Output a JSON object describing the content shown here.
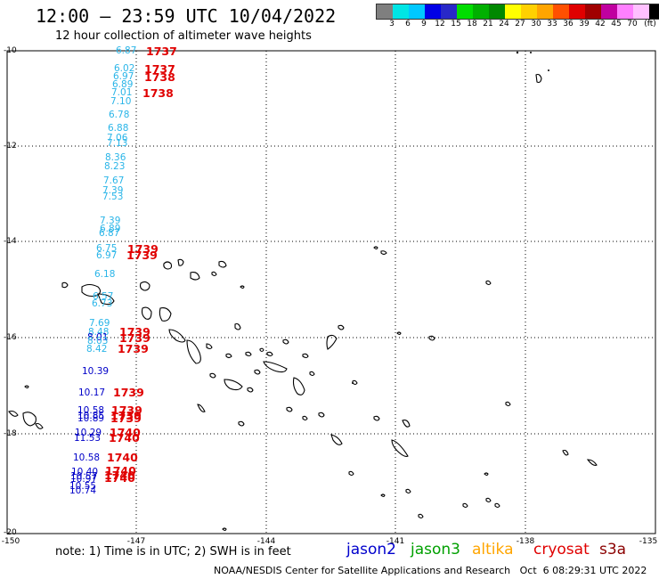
{
  "title": "12:00 – 23:59 UTC 10/04/2022",
  "subtitle": "12 hour collection of altimeter wave heights",
  "colorbar": {
    "colors": [
      "#7f7f7f",
      "#00e5e5",
      "#00c8ff",
      "#0000e6",
      "#2828c8",
      "#00dd00",
      "#00b000",
      "#008800",
      "#ffff00",
      "#ffd000",
      "#ffa500",
      "#ff5000",
      "#e00000",
      "#a00000",
      "#c000a0",
      "#ff80ff",
      "#ffc0ff",
      "#000000"
    ],
    "labels": [
      "3",
      "6",
      "9",
      "12",
      "15",
      "18",
      "21",
      "24",
      "27",
      "30",
      "33",
      "36",
      "39",
      "42",
      "45",
      "70",
      "(ft)"
    ]
  },
  "axes": {
    "lat_labels": [
      "-10",
      "-12",
      "-14",
      "-16",
      "-18",
      "-20"
    ],
    "lon_labels": [
      "-150",
      "-147",
      "-144",
      "-141",
      "-138",
      "-135"
    ]
  },
  "wave_heights": [
    {
      "v": "6.87",
      "c": "#2ab5e8"
    },
    {
      "v": "6.02",
      "c": "#2ab5e8"
    },
    {
      "v": "6.97",
      "c": "#2ab5e8"
    },
    {
      "v": "6.89",
      "c": "#2ab5e8"
    },
    {
      "v": "7.01",
      "c": "#2ab5e8"
    },
    {
      "v": "7.10",
      "c": "#2ab5e8"
    },
    {
      "v": "6.78",
      "c": "#2ab5e8"
    },
    {
      "v": "6.88",
      "c": "#2ab5e8"
    },
    {
      "v": "7.06",
      "c": "#2ab5e8"
    },
    {
      "v": "7.13",
      "c": "#2ab5e8"
    },
    {
      "v": "8.36",
      "c": "#2ab5e8"
    },
    {
      "v": "8.23",
      "c": "#2ab5e8"
    },
    {
      "v": "7.67",
      "c": "#2ab5e8"
    },
    {
      "v": "7.39",
      "c": "#2ab5e8"
    },
    {
      "v": "7.53",
      "c": "#2ab5e8"
    },
    {
      "v": "7.39",
      "c": "#2ab5e8"
    },
    {
      "v": "6.89",
      "c": "#2ab5e8"
    },
    {
      "v": "6.87",
      "c": "#2ab5e8"
    },
    {
      "v": "6.75",
      "c": "#2ab5e8"
    },
    {
      "v": "6.97",
      "c": "#2ab5e8"
    },
    {
      "v": "6.18",
      "c": "#2ab5e8"
    },
    {
      "v": "6.57",
      "c": "#2ab5e8"
    },
    {
      "v": "6.73",
      "c": "#2ab5e8"
    },
    {
      "v": "7.69",
      "c": "#2ab5e8"
    },
    {
      "v": "8.48",
      "c": "#2ab5e8"
    },
    {
      "v": "8.01",
      "c": "#0000c8"
    },
    {
      "v": "8.03",
      "c": "#2ab5e8"
    },
    {
      "v": "8.42",
      "c": "#2ab5e8"
    },
    {
      "v": "10.39",
      "c": "#0000c8"
    },
    {
      "v": "10.17",
      "c": "#0000c8"
    },
    {
      "v": "10.58",
      "c": "#0000c8"
    },
    {
      "v": "10.85",
      "c": "#0000c8"
    },
    {
      "v": "10.89",
      "c": "#0000c8"
    },
    {
      "v": "10.29",
      "c": "#0000c8"
    },
    {
      "v": "11.53",
      "c": "#0000c8"
    },
    {
      "v": "10.58",
      "c": "#0000c8"
    },
    {
      "v": "10.40",
      "c": "#0000c8"
    },
    {
      "v": "10.57",
      "c": "#0000c8"
    },
    {
      "v": "10.97",
      "c": "#0000c8"
    },
    {
      "v": "10.55",
      "c": "#0000c8"
    },
    {
      "v": "10.74",
      "c": "#0000c8"
    }
  ],
  "cycle_times": [
    "1737",
    "1737",
    "1738",
    "1738",
    "1739",
    "1739",
    "1739",
    "1739",
    "1739",
    "1739",
    "1739",
    "1739",
    "1739",
    "1740",
    "1740",
    "1740",
    "1740",
    "1740",
    "1740"
  ],
  "note": "note: 1) Time is in UTC; 2) SWH is in feet",
  "legend": [
    {
      "label": "jason2",
      "color": "#0000cc"
    },
    {
      "label": "jason3",
      "color": "#00a000"
    },
    {
      "label": "altika",
      "color": "#ffa500"
    },
    {
      "label": "cryosat",
      "color": "#e00000"
    },
    {
      "label": "s3a",
      "color": "#8b0000"
    }
  ],
  "credit": "NOAA/NESDIS Center for Satellite Applications and Research   Oct  6 08:29:31 UTC 2022"
}
